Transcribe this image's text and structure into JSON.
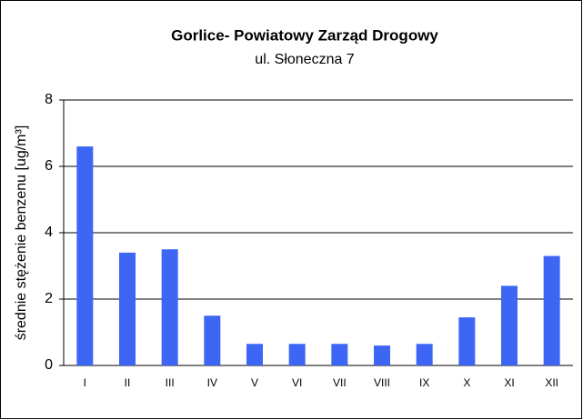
{
  "chart_data": {
    "type": "bar",
    "title": "Gorlice- Powiatowy Zarząd Drogowy",
    "subtitle": "ul. Słoneczna 7",
    "y_label": "średnie stężenie benzenu  [ug/m³]",
    "categories": [
      "I",
      "II",
      "III",
      "IV",
      "V",
      "VI",
      "VII",
      "VIII",
      "IX",
      "X",
      "XI",
      "XII"
    ],
    "values": [
      6.6,
      3.4,
      3.5,
      1.5,
      0.65,
      0.65,
      0.65,
      0.6,
      0.65,
      1.45,
      2.4,
      3.3
    ],
    "color": "#3d66f5",
    "ylim": [
      0,
      8
    ],
    "yticks": [
      0,
      2,
      4,
      6,
      8
    ],
    "grid": true
  }
}
